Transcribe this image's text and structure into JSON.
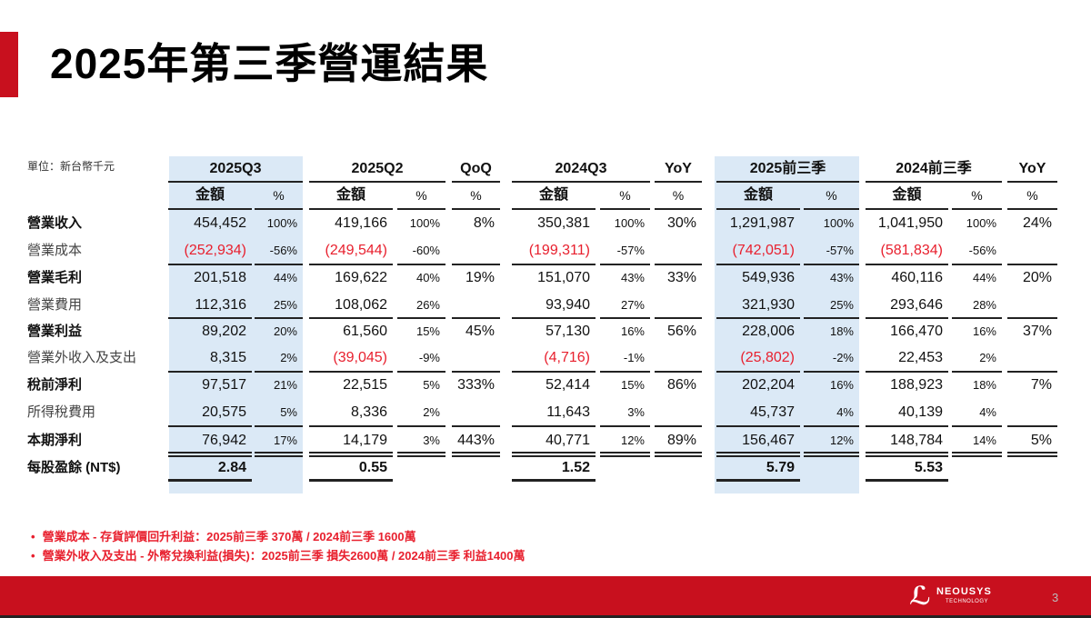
{
  "title": "2025年第三季營運結果",
  "unit_label": "單位：新台幣千元",
  "colors": {
    "accent": "#c8101e",
    "negative": "#e8202e",
    "highlight": "#dbe9f6"
  },
  "group_headers": [
    "2025Q3",
    "2025Q2",
    "QoQ",
    "2024Q3",
    "YoY",
    "2025前三季",
    "2024前三季",
    "YoY"
  ],
  "sub_headers": [
    "金額",
    "%",
    "金額",
    "%",
    "%",
    "金額",
    "%",
    "%",
    "金額",
    "%",
    "金額",
    "%",
    "%"
  ],
  "rows": [
    {
      "label": "營業收入",
      "bold": true,
      "values": [
        "454,452",
        "100%",
        "419,166",
        "100%",
        "8%",
        "350,381",
        "100%",
        "30%",
        "1,291,987",
        "100%",
        "1,041,950",
        "100%",
        "24%"
      ]
    },
    {
      "label": "營業成本",
      "bold": false,
      "values": [
        "(252,934)",
        "-56%",
        "(249,544)",
        "-60%",
        "",
        "(199,311)",
        "-57%",
        "",
        "(742,051)",
        "-57%",
        "(581,834)",
        "-56%",
        ""
      ]
    },
    {
      "label": "營業毛利",
      "bold": true,
      "values": [
        "201,518",
        "44%",
        "169,622",
        "40%",
        "19%",
        "151,070",
        "43%",
        "33%",
        "549,936",
        "43%",
        "460,116",
        "44%",
        "20%"
      ]
    },
    {
      "label": "營業費用",
      "bold": false,
      "values": [
        "112,316",
        "25%",
        "108,062",
        "26%",
        "",
        "93,940",
        "27%",
        "",
        "321,930",
        "25%",
        "293,646",
        "28%",
        ""
      ]
    },
    {
      "label": "營業利益",
      "bold": true,
      "values": [
        "89,202",
        "20%",
        "61,560",
        "15%",
        "45%",
        "57,130",
        "16%",
        "56%",
        "228,006",
        "18%",
        "166,470",
        "16%",
        "37%"
      ]
    },
    {
      "label": "營業外收入及支出",
      "bold": false,
      "values": [
        "8,315",
        "2%",
        "(39,045)",
        "-9%",
        "",
        "(4,716)",
        "-1%",
        "",
        "(25,802)",
        "-2%",
        "22,453",
        "2%",
        ""
      ]
    },
    {
      "label": "稅前淨利",
      "bold": true,
      "values": [
        "97,517",
        "21%",
        "22,515",
        "5%",
        "333%",
        "52,414",
        "15%",
        "86%",
        "202,204",
        "16%",
        "188,923",
        "18%",
        "7%"
      ]
    },
    {
      "label": "所得稅費用",
      "bold": false,
      "values": [
        "20,575",
        "5%",
        "8,336",
        "2%",
        "",
        "11,643",
        "3%",
        "",
        "45,737",
        "4%",
        "40,139",
        "4%",
        ""
      ]
    },
    {
      "label": "本期淨利",
      "bold": true,
      "values": [
        "76,942",
        "17%",
        "14,179",
        "3%",
        "443%",
        "40,771",
        "12%",
        "89%",
        "156,467",
        "12%",
        "148,784",
        "14%",
        "5%"
      ]
    },
    {
      "label": "每股盈餘 (NT$)",
      "bold": true,
      "values": [
        "2.84",
        "",
        "0.55",
        "",
        "",
        "1.52",
        "",
        "",
        "5.79",
        "",
        "5.53",
        "",
        ""
      ]
    }
  ],
  "notes": [
    "營業成本 - 存貨評價回升利益：2025前三季 370萬 / 2024前三季 1600萬",
    "營業外收入及支出 - 外幣兌換利益(損失)：2025前三季 損失2600萬 / 2024前三季 利益1400萬"
  ],
  "footer": {
    "logo_text": "NEOUSYS",
    "logo_subtext": "TECHNOLOGY",
    "page_number": "3"
  }
}
